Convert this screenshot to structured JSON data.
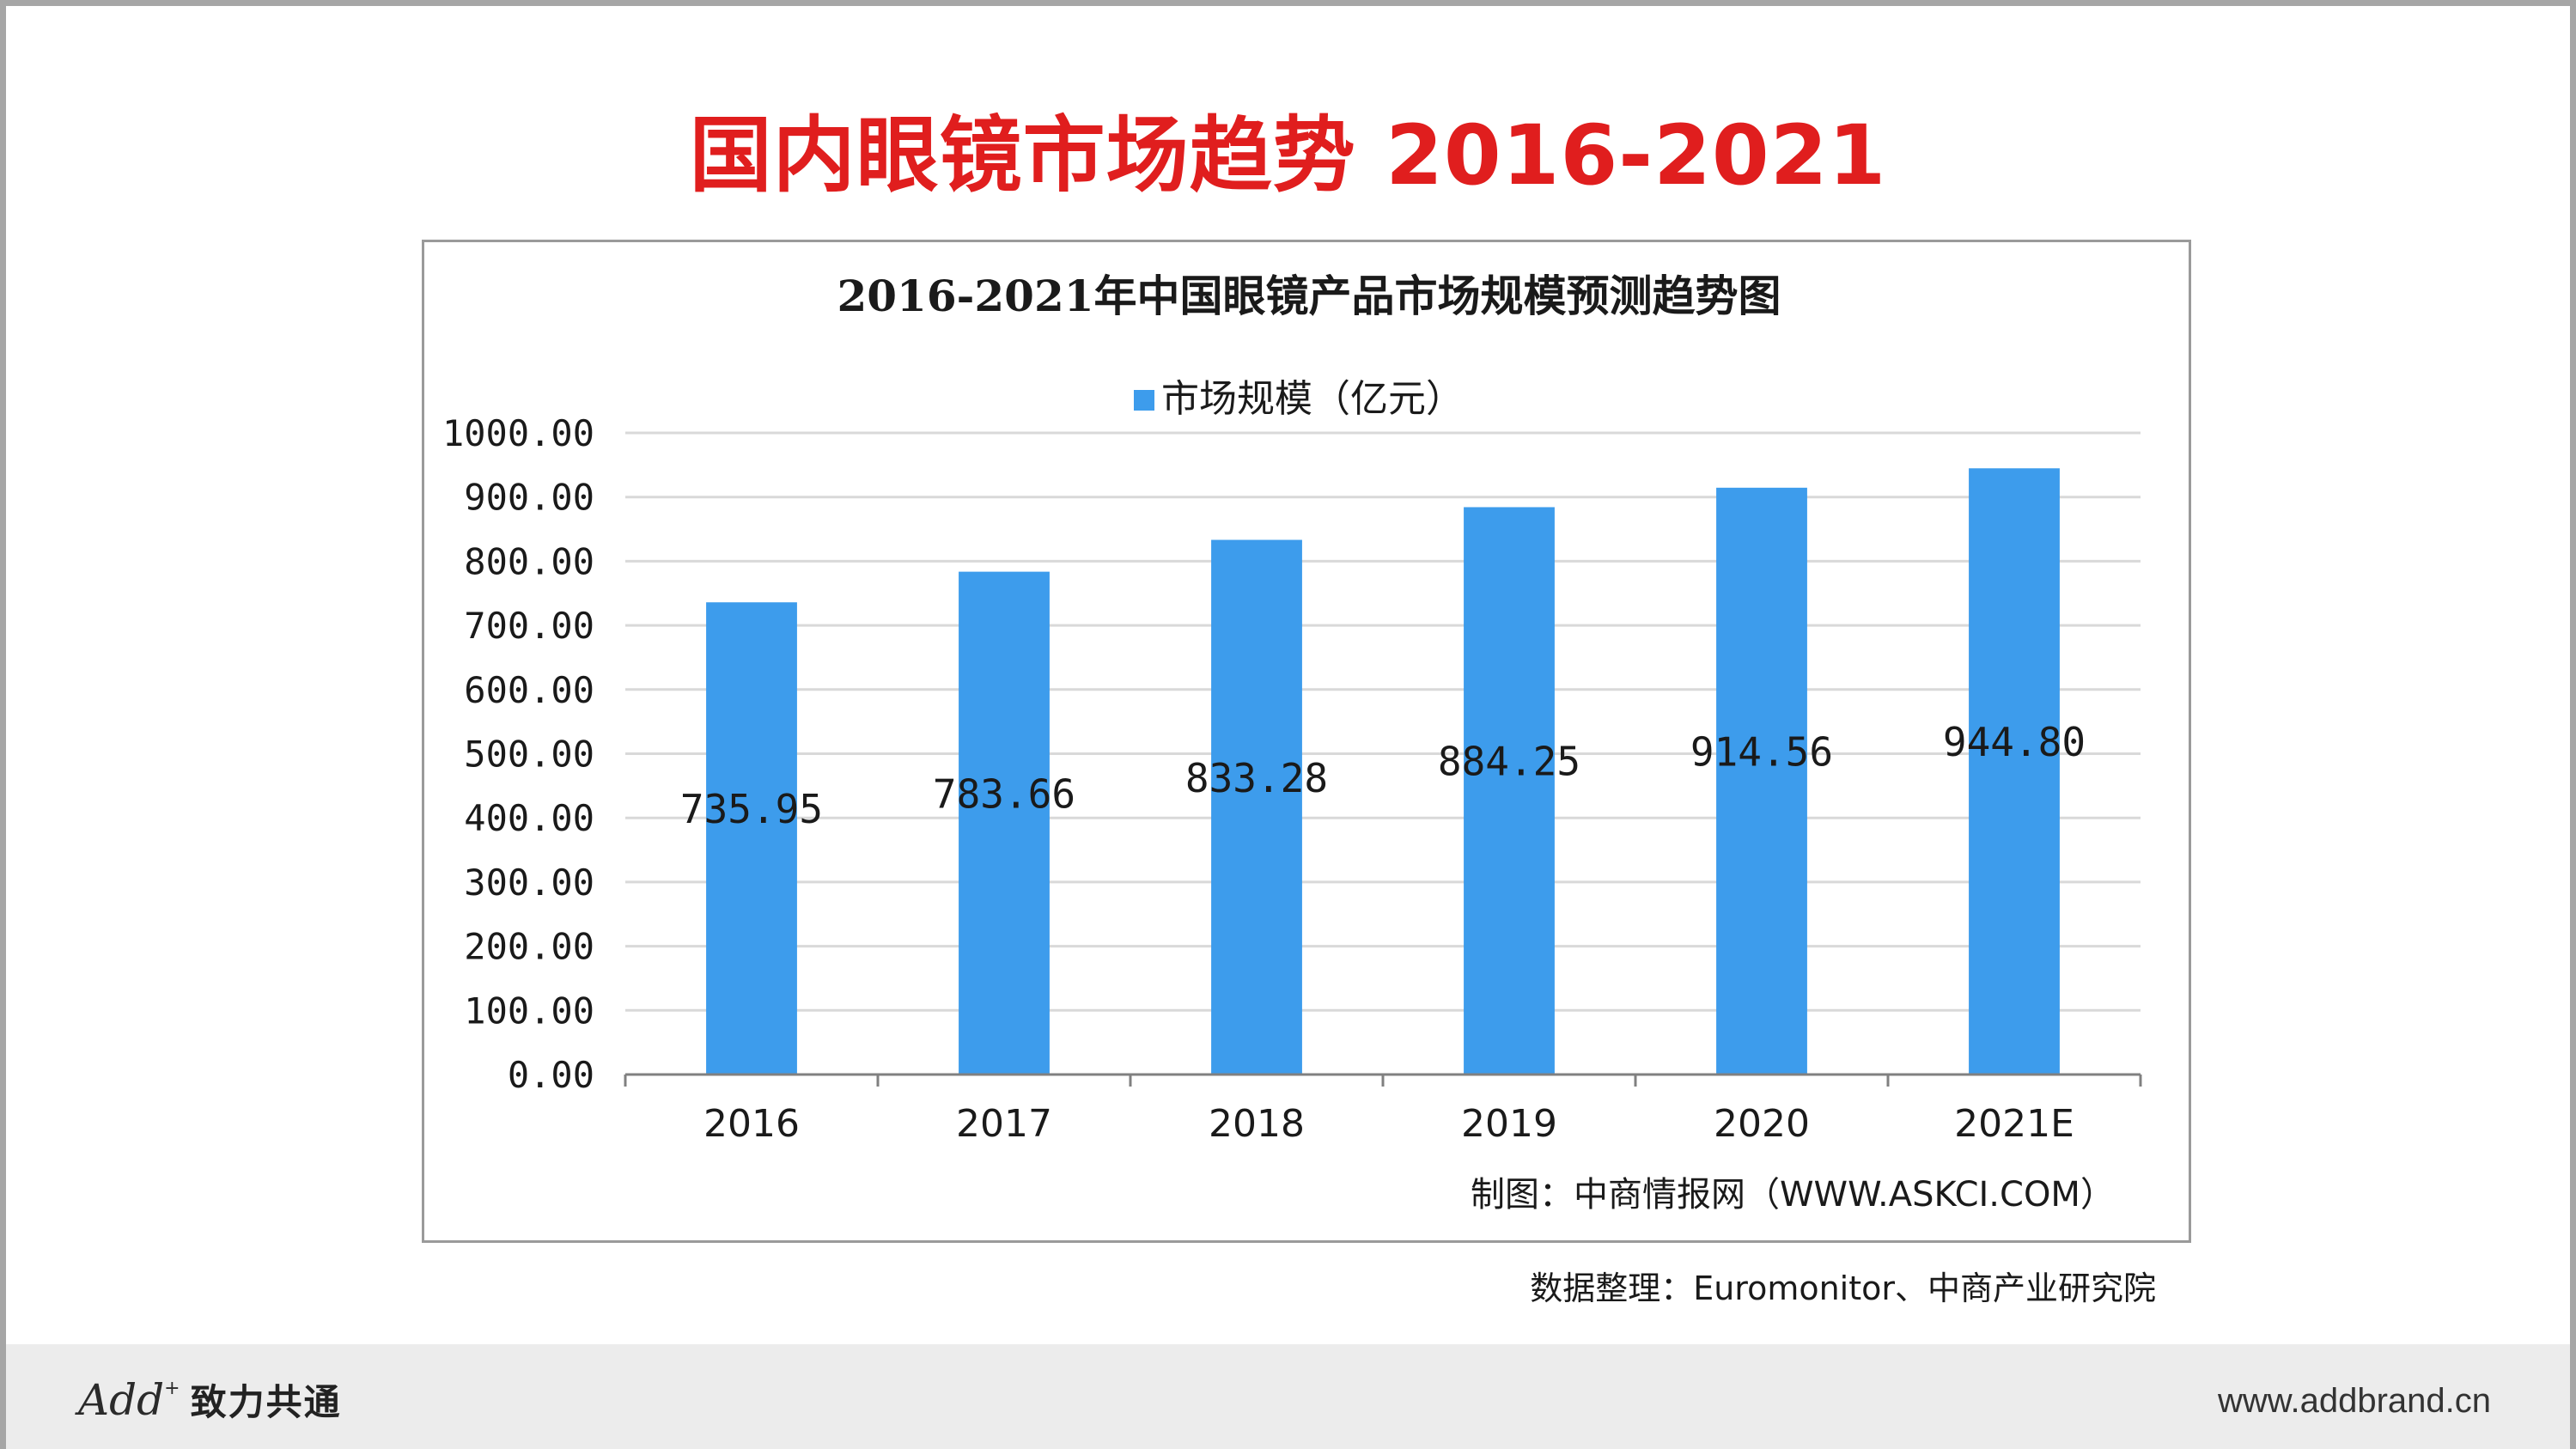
{
  "slide": {
    "title": "国内眼镜市场趋势 2016-2021",
    "source_note": "数据整理：Euromonitor、中商产业研究院",
    "footer": {
      "logo_word": "Add",
      "logo_sup": "+",
      "logo_slogan": "致力共通",
      "url": "www.addbrand.cn"
    }
  },
  "chart_data": {
    "type": "bar",
    "title": "2016-2021年中国眼镜产品市场规模预测趋势图",
    "categories": [
      "2016",
      "2017",
      "2018",
      "2019",
      "2020",
      "2021E"
    ],
    "series": [
      {
        "name": "市场规模（亿元）",
        "values": [
          735.95,
          783.66,
          833.28,
          884.25,
          914.56,
          944.8
        ],
        "value_labels": [
          "735.95",
          "783.66",
          "833.28",
          "884.25",
          "914.56",
          "944.80"
        ],
        "color": "#3d9cec"
      }
    ],
    "ylim": [
      0,
      1000
    ],
    "y_ticks": [
      "0.00",
      "100.00",
      "200.00",
      "300.00",
      "400.00",
      "500.00",
      "600.00",
      "700.00",
      "800.00",
      "900.00",
      "1000.00"
    ],
    "grid": true,
    "legend_position": "top",
    "credit": "制图：中商情报网（WWW.ASKCI.COM）",
    "colors": {
      "bar": "#3d9cec",
      "grid": "#d9d9d9",
      "axis": "#808080",
      "text": "#1a1a1a"
    }
  }
}
